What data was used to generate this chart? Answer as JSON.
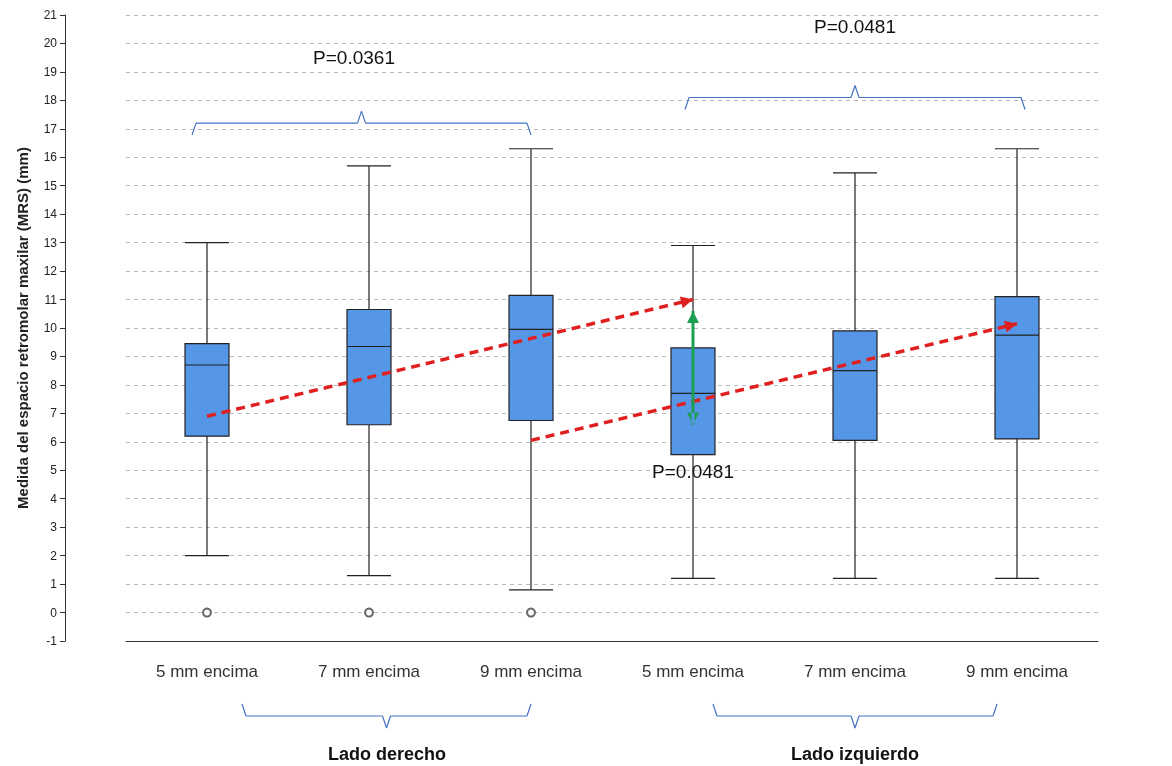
{
  "chart_data": {
    "type": "box",
    "ylabel": "Medida del espacio retromolar maxilar (MRS) (mm)",
    "categories": [
      "5 mm encima",
      "7 mm encima",
      "9 mm encima",
      "5 mm encima",
      "7 mm encima",
      "9 mm encima"
    ],
    "color": "#5596e6",
    "boxes": [
      {
        "low": 2.0,
        "q1": 6.2,
        "median": 8.7,
        "q3": 9.45,
        "high": 13.0,
        "outliers": [
          0
        ]
      },
      {
        "low": 1.3,
        "q1": 6.6,
        "median": 9.35,
        "q3": 10.65,
        "high": 15.7,
        "outliers": [
          0
        ]
      },
      {
        "low": 0.8,
        "q1": 6.75,
        "median": 9.95,
        "q3": 11.15,
        "high": 16.3,
        "outliers": [
          0
        ]
      },
      {
        "low": 1.2,
        "q1": 5.55,
        "median": 7.7,
        "q3": 9.3,
        "high": 12.9
      },
      {
        "low": 1.2,
        "q1": 6.05,
        "median": 8.5,
        "q3": 9.9,
        "high": 15.45
      },
      {
        "low": 1.2,
        "q1": 6.1,
        "median": 9.75,
        "q3": 11.1,
        "high": 16.3
      }
    ],
    "ylim": [
      -1,
      21
    ],
    "yticks": [
      -1,
      0,
      1,
      2,
      3,
      4,
      5,
      6,
      7,
      8,
      9,
      10,
      11,
      12,
      13,
      14,
      15,
      16,
      17,
      18,
      19,
      20,
      21
    ],
    "grid": "y",
    "annotations": [
      "P=0.0361",
      "P=0.0481",
      "P=0.0481",
      "Lado derecho",
      "Lado izquierdo"
    ]
  }
}
